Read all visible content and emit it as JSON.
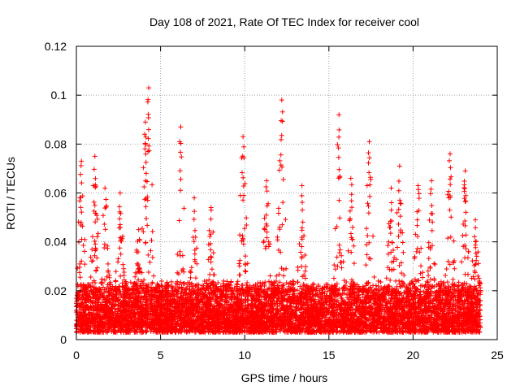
{
  "chart_data": {
    "type": "scatter",
    "title": "Day 108 of 2021, Rate Of TEC Index for receiver cool",
    "xlabel": "GPS time / hours",
    "ylabel": "ROTI / TECUs",
    "xlim": [
      0,
      25
    ],
    "ylim": [
      0,
      0.12
    ],
    "x_ticks": [
      "0",
      "5",
      "10",
      "15",
      "20",
      "25"
    ],
    "y_ticks": [
      "0",
      "0.02",
      "0.04",
      "0.06",
      "0.08",
      "0.1",
      "0.12"
    ],
    "grid": true,
    "marker": "+",
    "series_color": "#ff0000",
    "x_data_range": [
      0,
      24
    ],
    "baseline_band": [
      0.003,
      0.02
    ],
    "envelope_peaks": [
      {
        "x": 0.3,
        "y": 0.073
      },
      {
        "x": 1.1,
        "y": 0.075
      },
      {
        "x": 1.7,
        "y": 0.062
      },
      {
        "x": 2.6,
        "y": 0.06
      },
      {
        "x": 3.7,
        "y": 0.045
      },
      {
        "x": 4.1,
        "y": 0.089
      },
      {
        "x": 4.3,
        "y": 0.103
      },
      {
        "x": 6.2,
        "y": 0.087
      },
      {
        "x": 7.0,
        "y": 0.058
      },
      {
        "x": 8.0,
        "y": 0.054
      },
      {
        "x": 9.9,
        "y": 0.083
      },
      {
        "x": 11.3,
        "y": 0.065
      },
      {
        "x": 12.2,
        "y": 0.098
      },
      {
        "x": 13.4,
        "y": 0.063
      },
      {
        "x": 15.6,
        "y": 0.092
      },
      {
        "x": 16.3,
        "y": 0.066
      },
      {
        "x": 17.4,
        "y": 0.081
      },
      {
        "x": 18.7,
        "y": 0.062
      },
      {
        "x": 19.2,
        "y": 0.071
      },
      {
        "x": 20.3,
        "y": 0.063
      },
      {
        "x": 21.1,
        "y": 0.065
      },
      {
        "x": 22.2,
        "y": 0.076
      },
      {
        "x": 23.1,
        "y": 0.069
      },
      {
        "x": 23.7,
        "y": 0.049
      }
    ]
  }
}
